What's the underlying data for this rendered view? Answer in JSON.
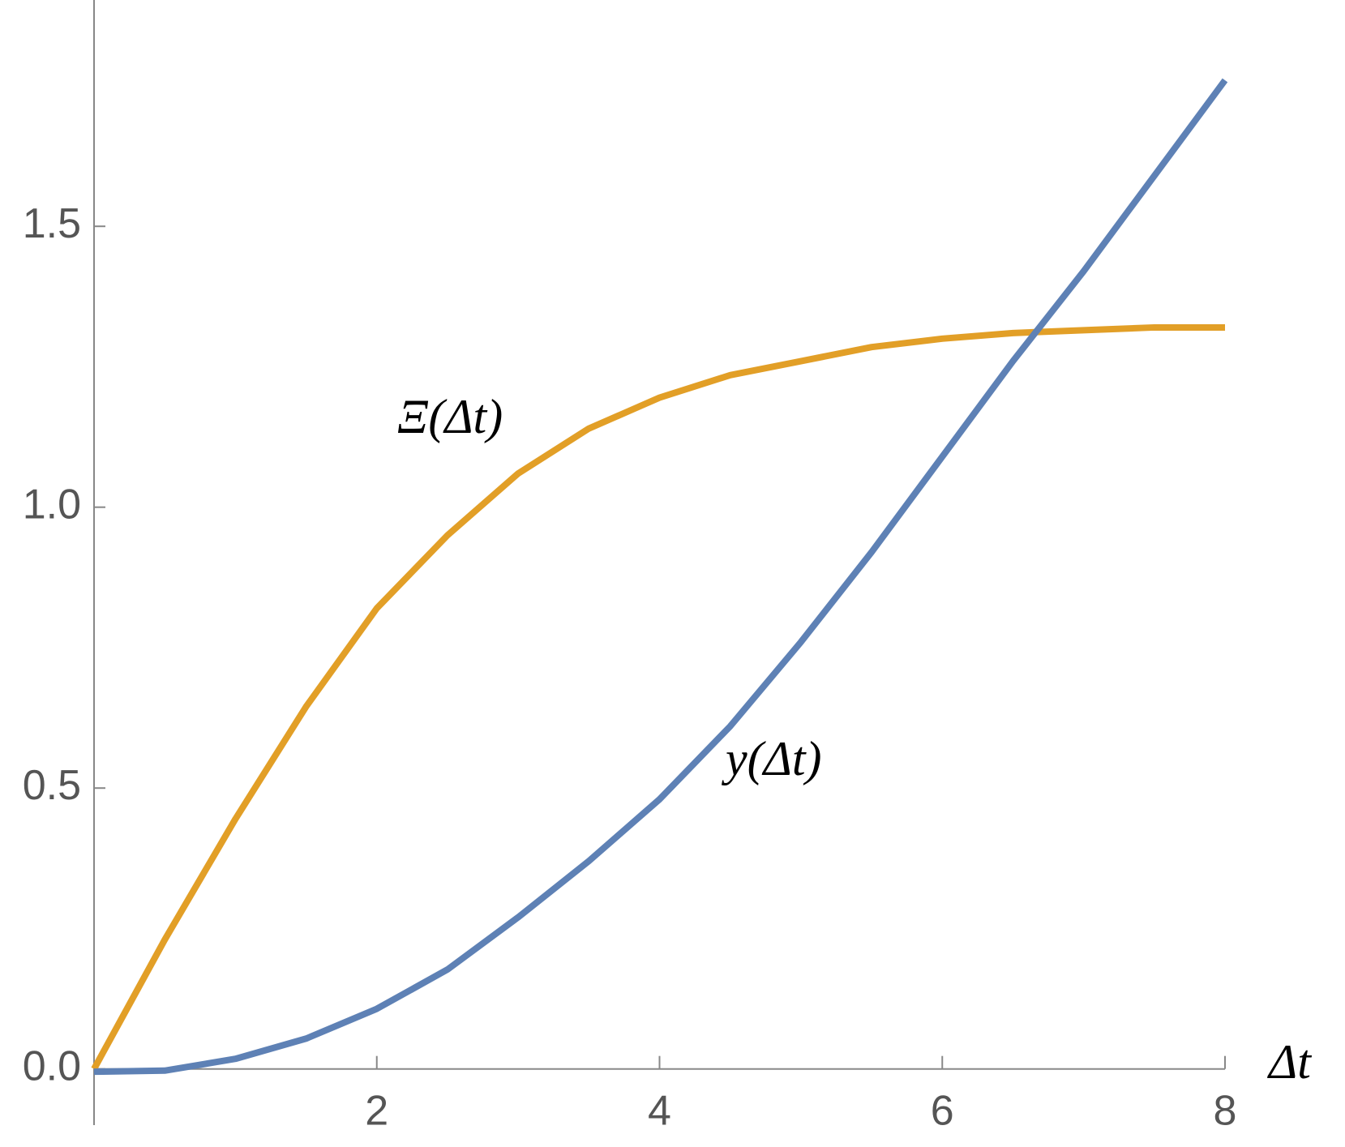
{
  "chart_data": {
    "type": "line",
    "x": [
      0,
      0.5,
      1,
      1.5,
      2,
      2.5,
      3,
      3.5,
      4,
      4.5,
      5,
      5.5,
      6,
      6.5,
      7,
      7.5,
      8
    ],
    "series": [
      {
        "name": "Ξ(Δt)",
        "color": "#e29f27",
        "values": [
          0,
          0.23,
          0.445,
          0.645,
          0.82,
          0.95,
          1.06,
          1.14,
          1.195,
          1.235,
          1.26,
          1.285,
          1.3,
          1.31,
          1.315,
          1.32,
          1.32
        ]
      },
      {
        "name": "y(Δt)",
        "color": "#5e81b5",
        "values": [
          -0.005,
          -0.003,
          0.018,
          0.054,
          0.107,
          0.177,
          0.27,
          0.37,
          0.48,
          0.61,
          0.76,
          0.92,
          1.09,
          1.26,
          1.42,
          1.59,
          1.76
        ]
      }
    ],
    "x_label": "Δt",
    "xlim": [
      0,
      8
    ],
    "xticks": [
      2,
      4,
      6,
      8
    ],
    "ylim": [
      -0.1,
      1.9
    ],
    "yticks": [
      {
        "value": 0,
        "label": "0.0"
      },
      0.5,
      {
        "value": 1,
        "label": "1.0"
      },
      1.5
    ],
    "grid": false
  }
}
